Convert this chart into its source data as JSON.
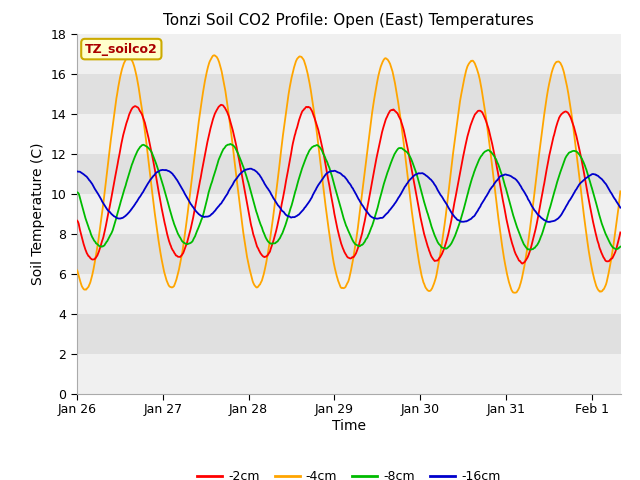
{
  "title": "Tonzi Soil CO2 Profile: Open (East) Temperatures",
  "xlabel": "Time",
  "ylabel": "Soil Temperature (C)",
  "ylim": [
    0,
    18
  ],
  "yticks": [
    0,
    2,
    4,
    6,
    8,
    10,
    12,
    14,
    16,
    18
  ],
  "series_labels": [
    "-2cm",
    "-4cm",
    "-8cm",
    "-16cm"
  ],
  "series_colors": [
    "#ff0000",
    "#ffa500",
    "#00bb00",
    "#0000cc"
  ],
  "label_text": "TZ_soilco2",
  "label_text_color": "#aa0000",
  "label_bg": "#ffffcc",
  "label_edge": "#ccaa00",
  "fig_bg": "#ffffff",
  "stripe_light": "#f0f0f0",
  "stripe_dark": "#dcdcdc",
  "n_points": 1000
}
